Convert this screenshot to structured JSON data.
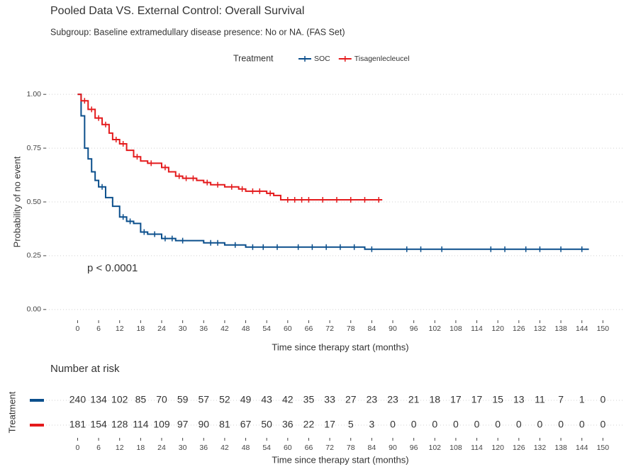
{
  "chart_data": {
    "type": "km",
    "title": "Pooled Data VS. External Control: Overall Survival",
    "subtitle": "Subgroup: Baseline extramedullary disease presence: No or NA. (FAS Set)",
    "legend_title": "Treatment",
    "xlabel": "Time since therapy start (months)",
    "ylabel": "Probability of no event",
    "annotation": "p < 0.0001",
    "xlim": [
      -9,
      156
    ],
    "ylim": [
      -0.05,
      1.05
    ],
    "xticks": [
      0,
      6,
      12,
      18,
      24,
      30,
      36,
      42,
      48,
      54,
      60,
      66,
      72,
      78,
      84,
      90,
      96,
      102,
      108,
      114,
      120,
      126,
      132,
      138,
      144,
      150
    ],
    "yticks": [
      {
        "value": 0,
        "label": "0.00"
      },
      {
        "value": 0.25,
        "label": "0.25"
      },
      {
        "value": 0.5,
        "label": "0.50"
      },
      {
        "value": 0.75,
        "label": "0.75"
      },
      {
        "value": 1,
        "label": "1.00"
      }
    ],
    "grid": true,
    "series": [
      {
        "name": "SOC",
        "color": "#0b4f8c",
        "x": [
          0,
          1,
          2,
          3,
          4,
          5,
          6,
          8,
          10,
          12,
          14,
          16,
          18,
          20,
          24,
          28,
          36,
          42,
          48,
          82,
          146
        ],
        "values": [
          1,
          0.9,
          0.75,
          0.7,
          0.64,
          0.6,
          0.57,
          0.52,
          0.48,
          0.43,
          0.41,
          0.4,
          0.36,
          0.35,
          0.33,
          0.32,
          0.31,
          0.3,
          0.29,
          0.28,
          0.28
        ],
        "censor_times": [
          7,
          13,
          15,
          19,
          22,
          25,
          27,
          30,
          38,
          40,
          45,
          50,
          53,
          57,
          63,
          67,
          71,
          75,
          79,
          84,
          94,
          98,
          104,
          118,
          122,
          128,
          132,
          138,
          144
        ],
        "censor_values": [
          0.57,
          0.43,
          0.41,
          0.36,
          0.35,
          0.33,
          0.33,
          0.32,
          0.31,
          0.31,
          0.3,
          0.29,
          0.29,
          0.29,
          0.29,
          0.29,
          0.29,
          0.29,
          0.29,
          0.28,
          0.28,
          0.28,
          0.28,
          0.28,
          0.28,
          0.28,
          0.28,
          0.28,
          0.28
        ]
      },
      {
        "name": "Tisagenlecleucel",
        "color": "#e41a1c",
        "x": [
          0,
          1,
          3,
          5,
          7,
          9,
          10,
          12,
          14,
          16,
          18,
          20,
          24,
          26,
          28,
          30,
          34,
          36,
          38,
          42,
          46,
          48,
          54,
          56,
          58,
          87
        ],
        "values": [
          1,
          0.97,
          0.93,
          0.89,
          0.86,
          0.82,
          0.79,
          0.77,
          0.74,
          0.71,
          0.69,
          0.68,
          0.66,
          0.64,
          0.62,
          0.61,
          0.6,
          0.59,
          0.58,
          0.57,
          0.56,
          0.55,
          0.54,
          0.53,
          0.51,
          0.51
        ],
        "censor_times": [
          2,
          4,
          6,
          8,
          11,
          13,
          17,
          21,
          25,
          29,
          31,
          33,
          37,
          40,
          44,
          47,
          50,
          52,
          55,
          60,
          62,
          64,
          66,
          70,
          74,
          78,
          82,
          86
        ],
        "censor_values": [
          0.97,
          0.93,
          0.89,
          0.86,
          0.79,
          0.77,
          0.71,
          0.68,
          0.66,
          0.62,
          0.61,
          0.61,
          0.59,
          0.58,
          0.57,
          0.56,
          0.55,
          0.55,
          0.54,
          0.51,
          0.51,
          0.51,
          0.51,
          0.51,
          0.51,
          0.51,
          0.51,
          0.51
        ]
      }
    ],
    "risk_table": {
      "title": "Number at risk",
      "ylabel": "Treatment",
      "xlabel": "Time since therapy start (months)",
      "rows": [
        {
          "color": "#0b4f8c",
          "values": [
            240,
            134,
            102,
            85,
            70,
            59,
            57,
            52,
            49,
            43,
            42,
            35,
            33,
            27,
            23,
            23,
            21,
            18,
            17,
            17,
            15,
            13,
            11,
            7,
            1,
            0
          ]
        },
        {
          "color": "#e41a1c",
          "values": [
            181,
            154,
            128,
            114,
            109,
            97,
            90,
            81,
            67,
            50,
            36,
            22,
            17,
            5,
            3,
            0,
            0,
            0,
            0,
            0,
            0,
            0,
            0,
            0,
            0,
            0
          ]
        }
      ]
    }
  }
}
